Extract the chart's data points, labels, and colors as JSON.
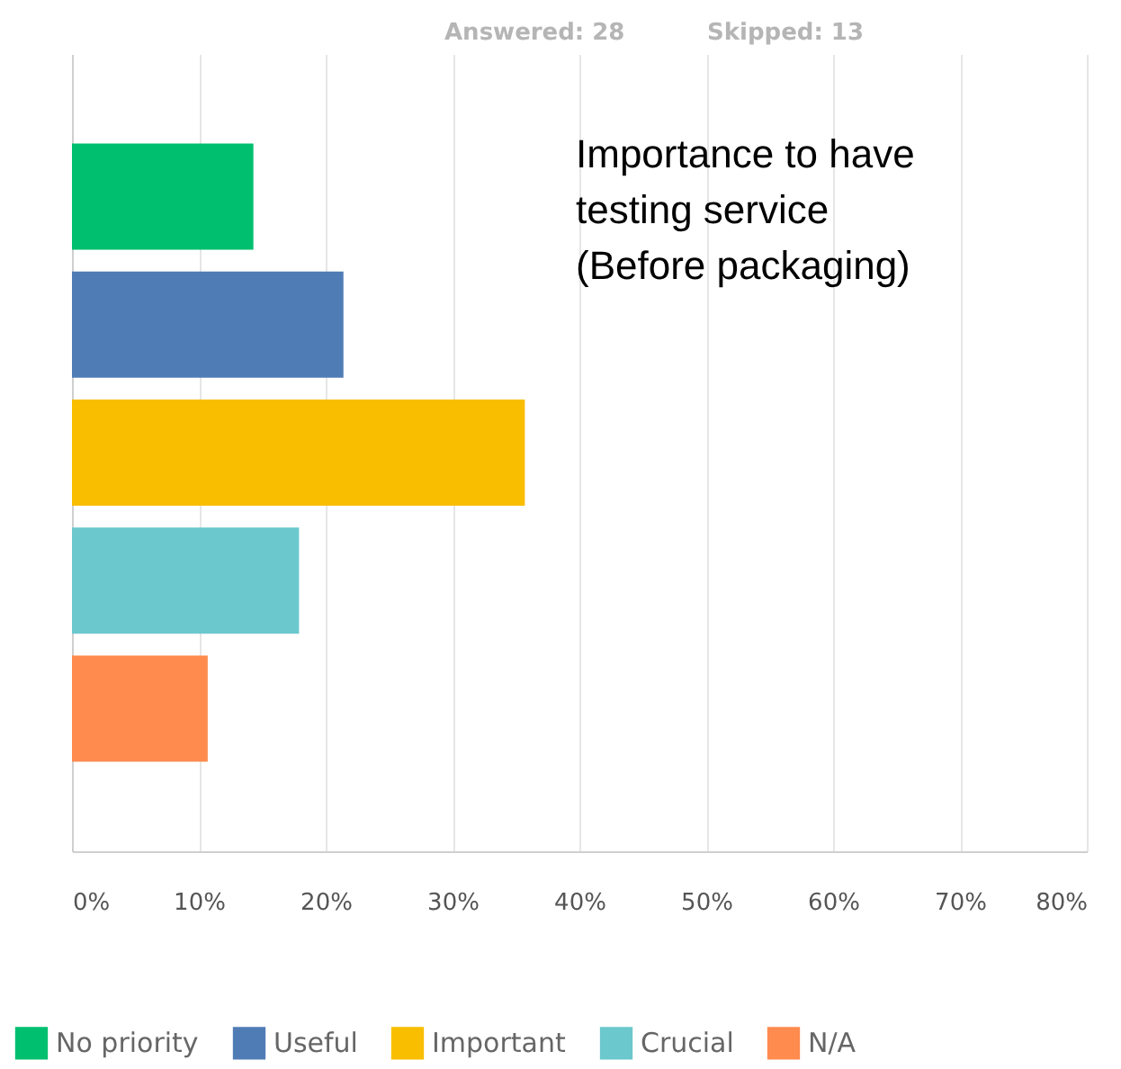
{
  "chart_data": {
    "type": "bar",
    "orientation": "horizontal",
    "title": "Importance to have\ntesting service\n(Before packaging)",
    "annotations": [
      "Answered: 28",
      "Skipped: 13"
    ],
    "categories": [
      null,
      null,
      null,
      null,
      null
    ],
    "series": [
      {
        "name": "No priority",
        "color": "#00bf6f",
        "values": [
          14.3,
          null,
          null,
          null,
          null
        ]
      },
      {
        "name": "Useful",
        "color": "#507cb6",
        "values": [
          null,
          21.4,
          null,
          null,
          null
        ]
      },
      {
        "name": "Important",
        "color": "#f9be00",
        "values": [
          null,
          null,
          35.7,
          null,
          null
        ]
      },
      {
        "name": "Crucial",
        "color": "#6bc8cd",
        "values": [
          null,
          null,
          null,
          17.9,
          null
        ]
      },
      {
        "name": "N/A",
        "color": "#ff8b4f",
        "values": [
          null,
          null,
          null,
          null,
          10.7
        ]
      }
    ],
    "xlim": [
      0,
      80
    ],
    "xticks": [
      {
        "value": 0,
        "label": "0%"
      },
      {
        "value": 10,
        "label": "10%"
      },
      {
        "value": 20,
        "label": "20%"
      },
      {
        "value": 30,
        "label": "30%"
      },
      {
        "value": 40,
        "label": "40%"
      },
      {
        "value": 50,
        "label": "50%"
      },
      {
        "value": 60,
        "label": "60%"
      },
      {
        "value": 70,
        "label": "70%"
      },
      {
        "value": 80,
        "label": "80%"
      }
    ],
    "grid": "x",
    "legend": "bottom",
    "tick_labels": "x"
  }
}
